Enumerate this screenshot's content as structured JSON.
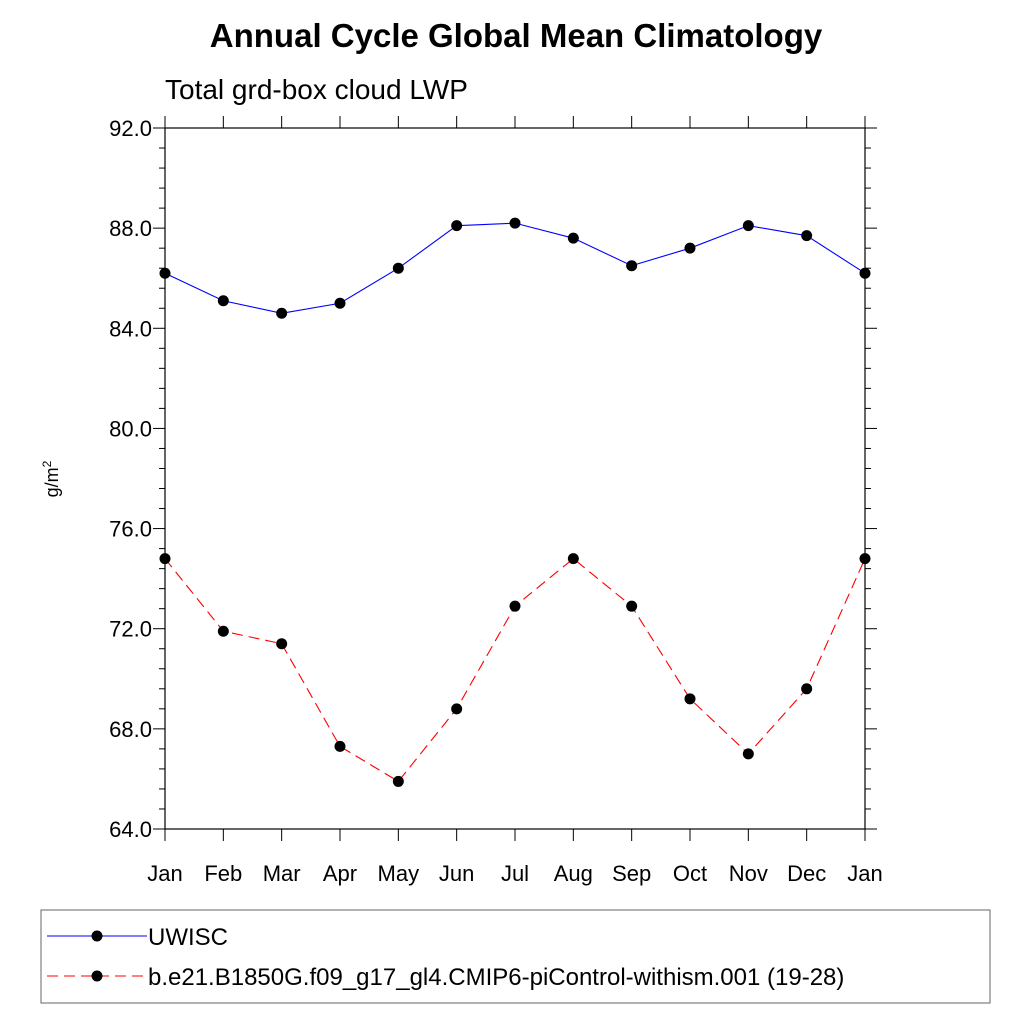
{
  "chart_data": {
    "type": "line",
    "title": "Annual Cycle Global Mean Climatology",
    "subtitle": "Total grd-box cloud LWP",
    "ylabel": "g/m",
    "ylabel_superscript": "2",
    "xlabel": "",
    "categories": [
      "Jan",
      "Feb",
      "Mar",
      "Apr",
      "May",
      "Jun",
      "Jul",
      "Aug",
      "Sep",
      "Oct",
      "Nov",
      "Dec",
      "Jan"
    ],
    "ylim": [
      64.0,
      92.0
    ],
    "yticks": [
      "64.0",
      "68.0",
      "72.0",
      "76.0",
      "80.0",
      "84.0",
      "88.0",
      "92.0"
    ],
    "ytick_values": [
      64,
      68,
      72,
      76,
      80,
      84,
      88,
      92
    ],
    "grid": false,
    "legend_position": "bottom",
    "series": [
      {
        "name": "UWISC",
        "color": "#0000ff",
        "line_style": "solid",
        "marker": "filled-circle",
        "values": [
          86.2,
          85.1,
          84.6,
          85.0,
          86.4,
          88.1,
          88.2,
          87.6,
          86.5,
          87.2,
          88.1,
          87.7,
          86.2
        ]
      },
      {
        "name": "b.e21.B1850G.f09_g17_gl4.CMIP6-piControl-withism.001 (19-28)",
        "color": "#ff0000",
        "line_style": "dashed",
        "marker": "filled-circle",
        "values": [
          74.8,
          71.9,
          71.4,
          67.3,
          65.9,
          68.8,
          72.9,
          74.8,
          72.9,
          69.2,
          67.0,
          69.6,
          74.8
        ]
      }
    ]
  }
}
